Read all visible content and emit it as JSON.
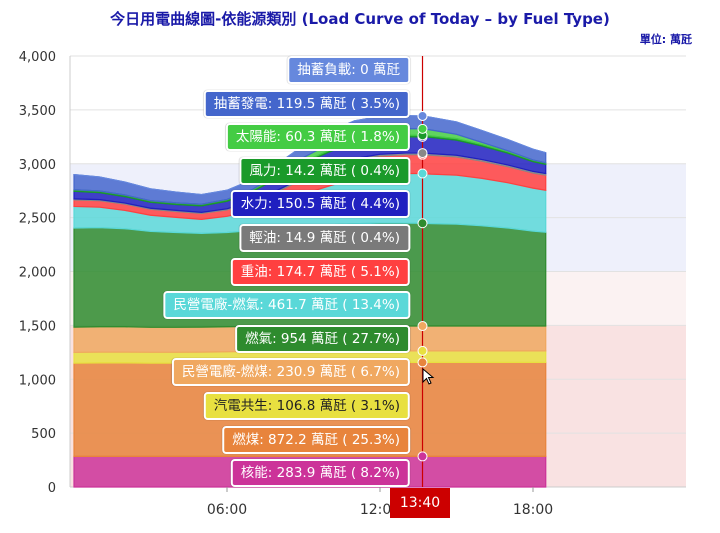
{
  "title": "今日用電曲線圖-依能源類別 (Load Curve of Today – by Fuel Type)",
  "unit_label": "單位: 萬瓩",
  "cursor_label": "13:40",
  "chart_data": {
    "type": "area",
    "stacked": true,
    "ylim": [
      0,
      4000
    ],
    "yticks": [
      "0",
      "500",
      "1,000",
      "1,500",
      "2,000",
      "2,500",
      "3,000",
      "3,500",
      "4,000"
    ],
    "xticks": [
      "06:00",
      "12:00",
      "18:00"
    ],
    "x_hours": [
      0.0,
      1.0,
      2.0,
      3.0,
      4.0,
      5.0,
      6.0,
      7.0,
      8.0,
      9.0,
      10.0,
      11.0,
      12.0,
      13.0,
      13.667,
      14.0,
      15.0,
      16.0,
      17.0,
      18.0,
      18.5
    ],
    "crosshair_time": "13:40",
    "series": [
      {
        "name": "核能",
        "color": "#cc3399",
        "values": [
          284,
          284,
          284,
          284,
          284,
          284,
          284,
          284,
          284,
          284,
          284,
          284,
          284,
          284,
          283.9,
          284,
          284,
          284,
          284,
          284,
          284
        ]
      },
      {
        "name": "燃煤",
        "color": "#e8843c",
        "values": [
          865,
          868,
          868,
          866,
          866,
          866,
          868,
          870,
          872,
          872,
          872,
          872,
          872,
          872,
          872.2,
          872,
          872,
          872,
          872,
          872,
          872
        ]
      },
      {
        "name": "汽電共生",
        "color": "#e8e040",
        "values": [
          100,
          100,
          100,
          100,
          100,
          102,
          103,
          104,
          105,
          106,
          106,
          106,
          107,
          107,
          106.8,
          107,
          107,
          107,
          107,
          107,
          107
        ]
      },
      {
        "name": "民營電廠-燃煤",
        "color": "#f0a860",
        "values": [
          235,
          235,
          235,
          232,
          232,
          232,
          232,
          232,
          232,
          232,
          231,
          231,
          231,
          231,
          230.9,
          231,
          231,
          231,
          231,
          231,
          231
        ]
      },
      {
        "name": "燃氣",
        "color": "#2e8b2e",
        "values": [
          920,
          920,
          910,
          890,
          880,
          870,
          875,
          890,
          910,
          925,
          940,
          950,
          955,
          955,
          954,
          950,
          945,
          930,
          910,
          880,
          870
        ]
      },
      {
        "name": "民營電廠-燃氣",
        "color": "#5ad8d8",
        "values": [
          200,
          190,
          170,
          150,
          140,
          130,
          150,
          180,
          230,
          300,
          360,
          420,
          450,
          460,
          461.7,
          460,
          455,
          440,
          420,
          400,
          390
        ]
      },
      {
        "name": "重油",
        "color": "#ff4040",
        "values": [
          60,
          60,
          58,
          55,
          55,
          55,
          60,
          80,
          110,
          140,
          160,
          170,
          174,
          175,
          174.7,
          175,
          170,
          160,
          150,
          140,
          140
        ]
      },
      {
        "name": "輕油",
        "color": "#888888",
        "values": [
          10,
          10,
          10,
          10,
          10,
          10,
          10,
          12,
          14,
          15,
          15,
          15,
          15,
          15,
          14.9,
          15,
          15,
          15,
          15,
          15,
          15
        ]
      },
      {
        "name": "水力",
        "color": "#2020c0",
        "values": [
          70,
          65,
          60,
          55,
          55,
          60,
          70,
          90,
          110,
          130,
          140,
          148,
          150,
          151,
          150.5,
          150,
          140,
          125,
          110,
          90,
          85
        ]
      },
      {
        "name": "風力",
        "color": "#1a9a2a",
        "values": [
          15,
          15,
          15,
          15,
          15,
          15,
          15,
          15,
          15,
          14,
          14,
          14,
          14,
          14,
          14.2,
          14,
          14,
          14,
          14,
          14,
          14
        ]
      },
      {
        "name": "太陽能",
        "color": "#44cc44",
        "values": [
          0,
          0,
          0,
          0,
          0,
          0,
          2,
          5,
          20,
          40,
          60,
          70,
          68,
          62,
          60.3,
          55,
          40,
          20,
          8,
          2,
          0
        ]
      },
      {
        "name": "抽蓄發電",
        "color": "#4466cc",
        "values": [
          140,
          130,
          120,
          110,
          100,
          90,
          85,
          90,
          100,
          110,
          115,
          118,
          119,
          120,
          119.5,
          118,
          115,
          110,
          105,
          100,
          95
        ]
      },
      {
        "name": "抽蓄負載",
        "color": "#6688dd",
        "values": [
          0,
          0,
          0,
          0,
          0,
          0,
          0,
          0,
          0,
          0,
          0,
          0,
          0,
          0,
          0,
          0,
          0,
          0,
          0,
          0,
          0
        ]
      }
    ],
    "tooltip_items": [
      {
        "label": "抽蓄負載: 0 萬瓩"
      },
      {
        "label": "抽蓄發電: 119.5 萬瓩 ( 3.5%)"
      },
      {
        "label": "太陽能: 60.3 萬瓩 ( 1.8%)"
      },
      {
        "label": "風力: 14.2 萬瓩 ( 0.4%)"
      },
      {
        "label": "水力: 150.5 萬瓩 ( 4.4%)"
      },
      {
        "label": "輕油: 14.9 萬瓩 ( 0.4%)"
      },
      {
        "label": "重油: 174.7 萬瓩 ( 5.1%)"
      },
      {
        "label": "民營電廠-燃氣: 461.7 萬瓩 ( 13.4%)"
      },
      {
        "label": "燃氣: 954 萬瓩 ( 27.7%)"
      },
      {
        "label": "民營電廠-燃煤: 230.9 萬瓩 ( 6.7%)"
      },
      {
        "label": "汽電共生: 106.8 萬瓩 ( 3.1%)"
      },
      {
        "label": "燃煤: 872.2 萬瓩 ( 25.3%)"
      },
      {
        "label": "核能: 283.9 萬瓩 ( 8.2%)"
      }
    ]
  }
}
